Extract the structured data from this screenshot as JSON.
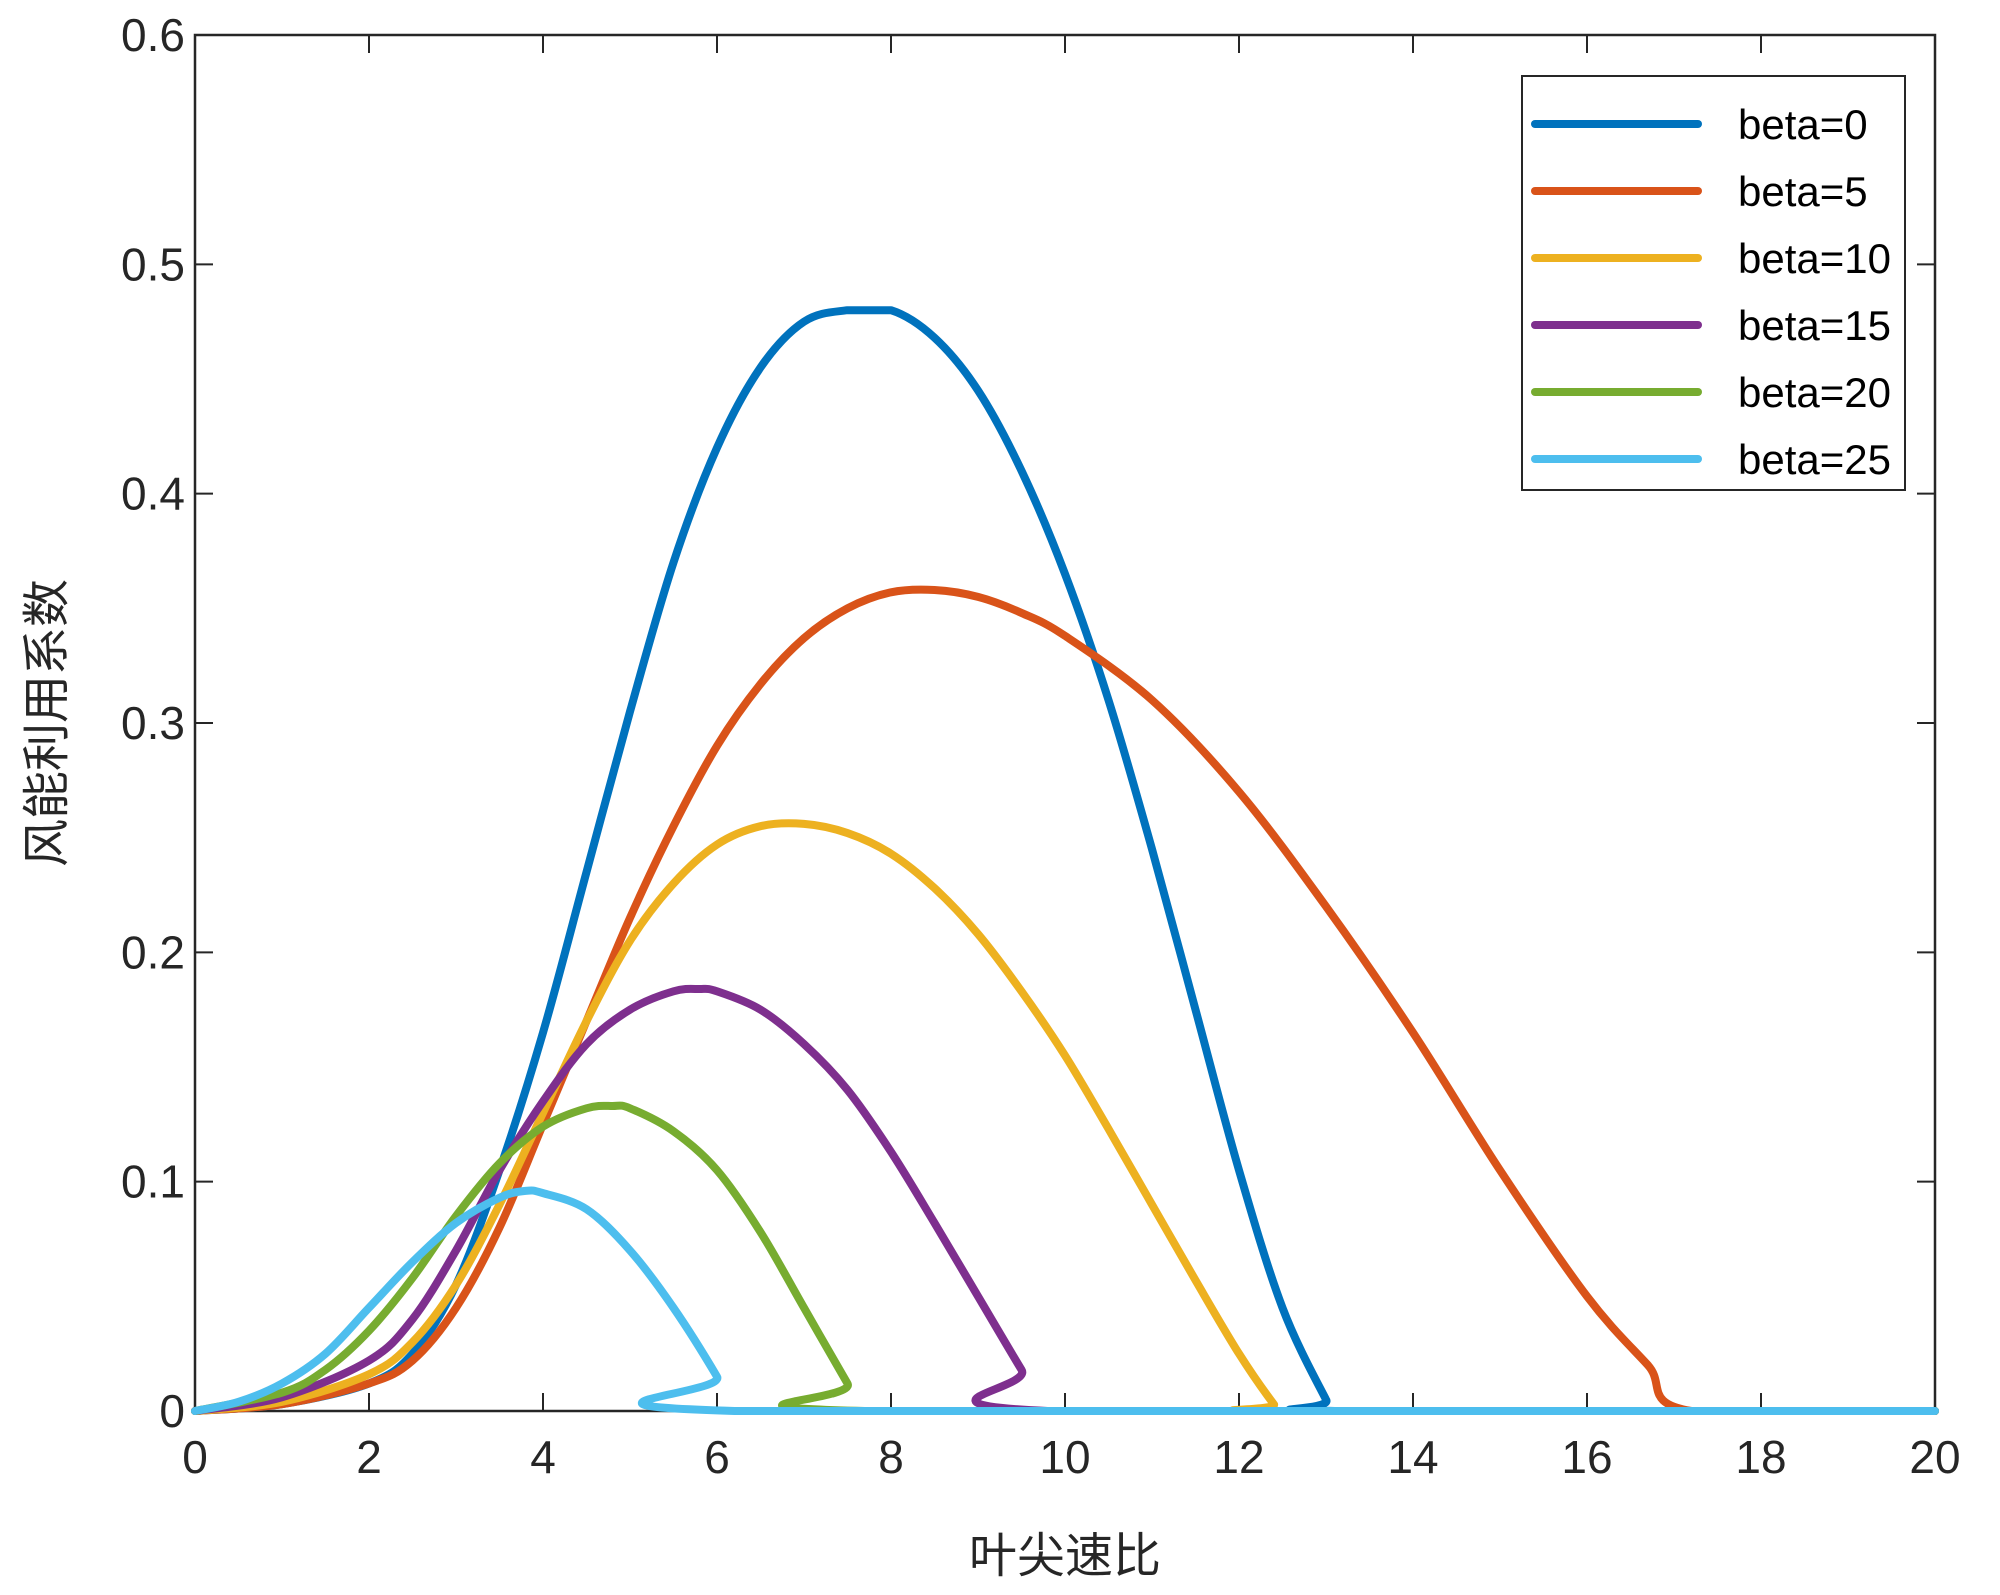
{
  "chart_data": {
    "type": "line",
    "xlabel": "叶尖速比",
    "ylabel": "风能利用系数",
    "xlim": [
      0,
      20
    ],
    "ylim": [
      0,
      0.6
    ],
    "xticks": [
      0,
      2,
      4,
      6,
      8,
      10,
      12,
      14,
      16,
      18,
      20
    ],
    "yticks": [
      0,
      0.1,
      0.2,
      0.3,
      0.4,
      0.5,
      0.6
    ],
    "xtick_labels": [
      "0",
      "2",
      "4",
      "6",
      "8",
      "10",
      "12",
      "14",
      "16",
      "18",
      "20"
    ],
    "ytick_labels": [
      "0",
      "0.1",
      "0.2",
      "0.3",
      "0.4",
      "0.5",
      "0.6"
    ],
    "grid": false,
    "legend_position": "top-right",
    "series": [
      {
        "name": "beta=0",
        "color": "#0072BD",
        "points": [
          [
            0,
            0
          ],
          [
            1,
            0.003
          ],
          [
            2,
            0.012
          ],
          [
            2.5,
            0.025
          ],
          [
            3,
            0.055
          ],
          [
            3.5,
            0.105
          ],
          [
            4,
            0.165
          ],
          [
            4.5,
            0.235
          ],
          [
            5,
            0.305
          ],
          [
            5.5,
            0.37
          ],
          [
            6,
            0.42
          ],
          [
            6.5,
            0.455
          ],
          [
            7,
            0.475
          ],
          [
            7.5,
            0.48
          ],
          [
            8,
            0.48
          ],
          [
            8.5,
            0.468
          ],
          [
            9,
            0.445
          ],
          [
            9.5,
            0.41
          ],
          [
            10,
            0.365
          ],
          [
            10.5,
            0.31
          ],
          [
            11,
            0.245
          ],
          [
            11.5,
            0.175
          ],
          [
            12,
            0.105
          ],
          [
            12.5,
            0.045
          ],
          [
            13,
            0.005
          ],
          [
            13.1,
            0
          ],
          [
            20,
            0
          ]
        ]
      },
      {
        "name": "beta=5",
        "color": "#D95319",
        "points": [
          [
            0,
            0
          ],
          [
            1,
            0.003
          ],
          [
            2,
            0.012
          ],
          [
            2.5,
            0.022
          ],
          [
            3,
            0.045
          ],
          [
            3.5,
            0.08
          ],
          [
            4,
            0.125
          ],
          [
            4.5,
            0.17
          ],
          [
            5,
            0.215
          ],
          [
            5.5,
            0.255
          ],
          [
            6,
            0.29
          ],
          [
            6.5,
            0.317
          ],
          [
            7,
            0.337
          ],
          [
            7.5,
            0.35
          ],
          [
            8,
            0.357
          ],
          [
            8.5,
            0.358
          ],
          [
            9,
            0.355
          ],
          [
            9.5,
            0.348
          ],
          [
            10,
            0.338
          ],
          [
            11,
            0.31
          ],
          [
            12,
            0.27
          ],
          [
            13,
            0.22
          ],
          [
            14,
            0.165
          ],
          [
            15,
            0.105
          ],
          [
            16,
            0.05
          ],
          [
            16.7,
            0.02
          ],
          [
            17.2,
            0
          ],
          [
            20,
            0
          ]
        ]
      },
      {
        "name": "beta=10",
        "color": "#EDB120",
        "points": [
          [
            0,
            0
          ],
          [
            1,
            0.004
          ],
          [
            2,
            0.016
          ],
          [
            2.5,
            0.03
          ],
          [
            3,
            0.055
          ],
          [
            3.5,
            0.09
          ],
          [
            4,
            0.13
          ],
          [
            4.5,
            0.17
          ],
          [
            5,
            0.205
          ],
          [
            5.5,
            0.23
          ],
          [
            6,
            0.247
          ],
          [
            6.5,
            0.255
          ],
          [
            7,
            0.256
          ],
          [
            7.5,
            0.252
          ],
          [
            8,
            0.243
          ],
          [
            8.5,
            0.228
          ],
          [
            9,
            0.208
          ],
          [
            9.5,
            0.183
          ],
          [
            10,
            0.155
          ],
          [
            10.5,
            0.123
          ],
          [
            11,
            0.09
          ],
          [
            11.5,
            0.057
          ],
          [
            12,
            0.025
          ],
          [
            12.4,
            0.003
          ],
          [
            12.5,
            0
          ],
          [
            20,
            0
          ]
        ]
      },
      {
        "name": "beta=15",
        "color": "#7E2F8E",
        "points": [
          [
            0,
            0
          ],
          [
            1,
            0.006
          ],
          [
            2,
            0.022
          ],
          [
            2.5,
            0.04
          ],
          [
            3,
            0.07
          ],
          [
            3.5,
            0.105
          ],
          [
            4,
            0.135
          ],
          [
            4.5,
            0.16
          ],
          [
            5,
            0.175
          ],
          [
            5.5,
            0.183
          ],
          [
            5.8,
            0.184
          ],
          [
            6,
            0.183
          ],
          [
            6.5,
            0.175
          ],
          [
            7,
            0.16
          ],
          [
            7.5,
            0.14
          ],
          [
            8,
            0.113
          ],
          [
            8.5,
            0.082
          ],
          [
            9,
            0.05
          ],
          [
            9.5,
            0.018
          ],
          [
            9.8,
            0
          ],
          [
            20,
            0
          ]
        ]
      },
      {
        "name": "beta=20",
        "color": "#77AC30",
        "points": [
          [
            0,
            0
          ],
          [
            1,
            0.008
          ],
          [
            1.5,
            0.018
          ],
          [
            2,
            0.035
          ],
          [
            2.5,
            0.058
          ],
          [
            3,
            0.085
          ],
          [
            3.5,
            0.108
          ],
          [
            4,
            0.124
          ],
          [
            4.5,
            0.132
          ],
          [
            4.8,
            0.133
          ],
          [
            5,
            0.132
          ],
          [
            5.5,
            0.122
          ],
          [
            6,
            0.105
          ],
          [
            6.5,
            0.078
          ],
          [
            7,
            0.045
          ],
          [
            7.5,
            0.012
          ],
          [
            7.7,
            0
          ],
          [
            20,
            0
          ]
        ]
      },
      {
        "name": "beta=25",
        "color": "#4DBEEE",
        "points": [
          [
            0,
            0
          ],
          [
            0.5,
            0.004
          ],
          [
            1,
            0.012
          ],
          [
            1.5,
            0.025
          ],
          [
            2,
            0.045
          ],
          [
            2.5,
            0.065
          ],
          [
            3,
            0.082
          ],
          [
            3.5,
            0.093
          ],
          [
            3.8,
            0.096
          ],
          [
            4,
            0.095
          ],
          [
            4.5,
            0.088
          ],
          [
            5,
            0.07
          ],
          [
            5.5,
            0.045
          ],
          [
            6,
            0.015
          ],
          [
            6.2,
            0
          ],
          [
            20,
            0
          ]
        ]
      }
    ]
  }
}
